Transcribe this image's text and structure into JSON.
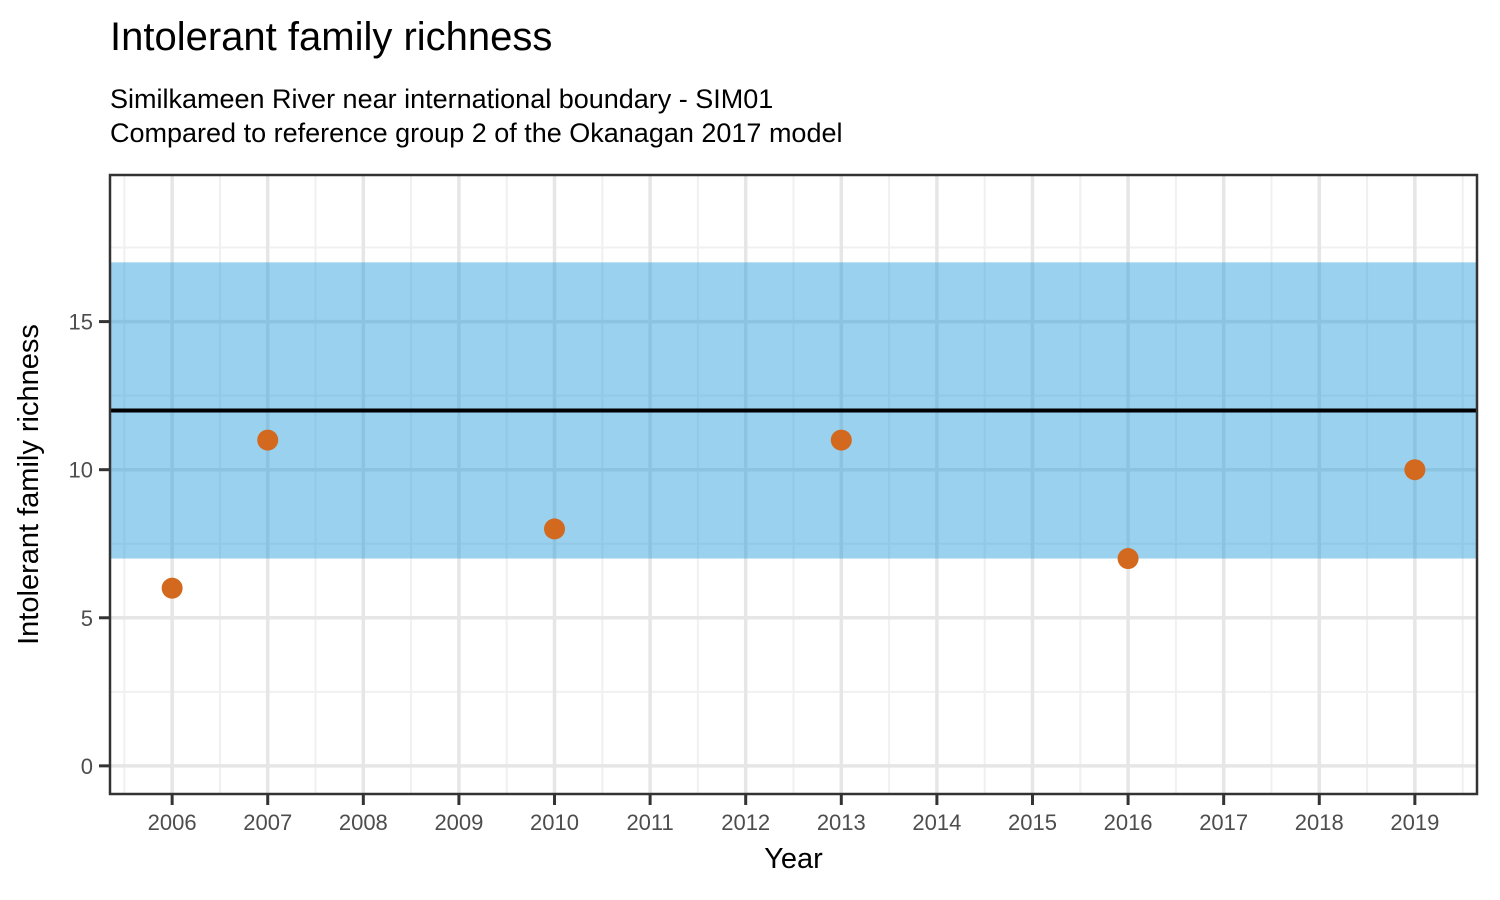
{
  "chart_data": {
    "type": "scatter",
    "title": "Intolerant family richness",
    "subtitle_line1": "Similkameen River near international boundary - SIM01",
    "subtitle_line2": "Compared to reference group 2 of the Okanagan 2017 model",
    "xlabel": "Year",
    "ylabel": "Intolerant family richness",
    "x_domain": [
      2005.35,
      2019.65
    ],
    "y_domain": [
      -0.95,
      19.95
    ],
    "x_ticks": [
      2006,
      2007,
      2008,
      2009,
      2010,
      2011,
      2012,
      2013,
      2014,
      2015,
      2016,
      2017,
      2018,
      2019
    ],
    "y_ticks": [
      0,
      5,
      10,
      15
    ],
    "points": [
      {
        "x": 2006,
        "y": 6
      },
      {
        "x": 2007,
        "y": 11
      },
      {
        "x": 2010,
        "y": 8
      },
      {
        "x": 2013,
        "y": 11
      },
      {
        "x": 2016,
        "y": 7
      },
      {
        "x": 2019,
        "y": 10
      }
    ],
    "reference_band": {
      "ymin": 7,
      "ymax": 17
    },
    "reference_line": {
      "y": 12
    },
    "legend_position": "none",
    "grid": "on",
    "colors": {
      "point": "#D2691E",
      "band": "#1F99D9",
      "band_opacity": "0.45",
      "reference_line": "#000000",
      "grid_major": "#E6E6E6",
      "grid_minor": "#F0F0F0",
      "panel_border": "#333333",
      "tick_mark": "#333333",
      "tick_text": "#4D4D4D",
      "background": "#FFFFFF"
    }
  }
}
